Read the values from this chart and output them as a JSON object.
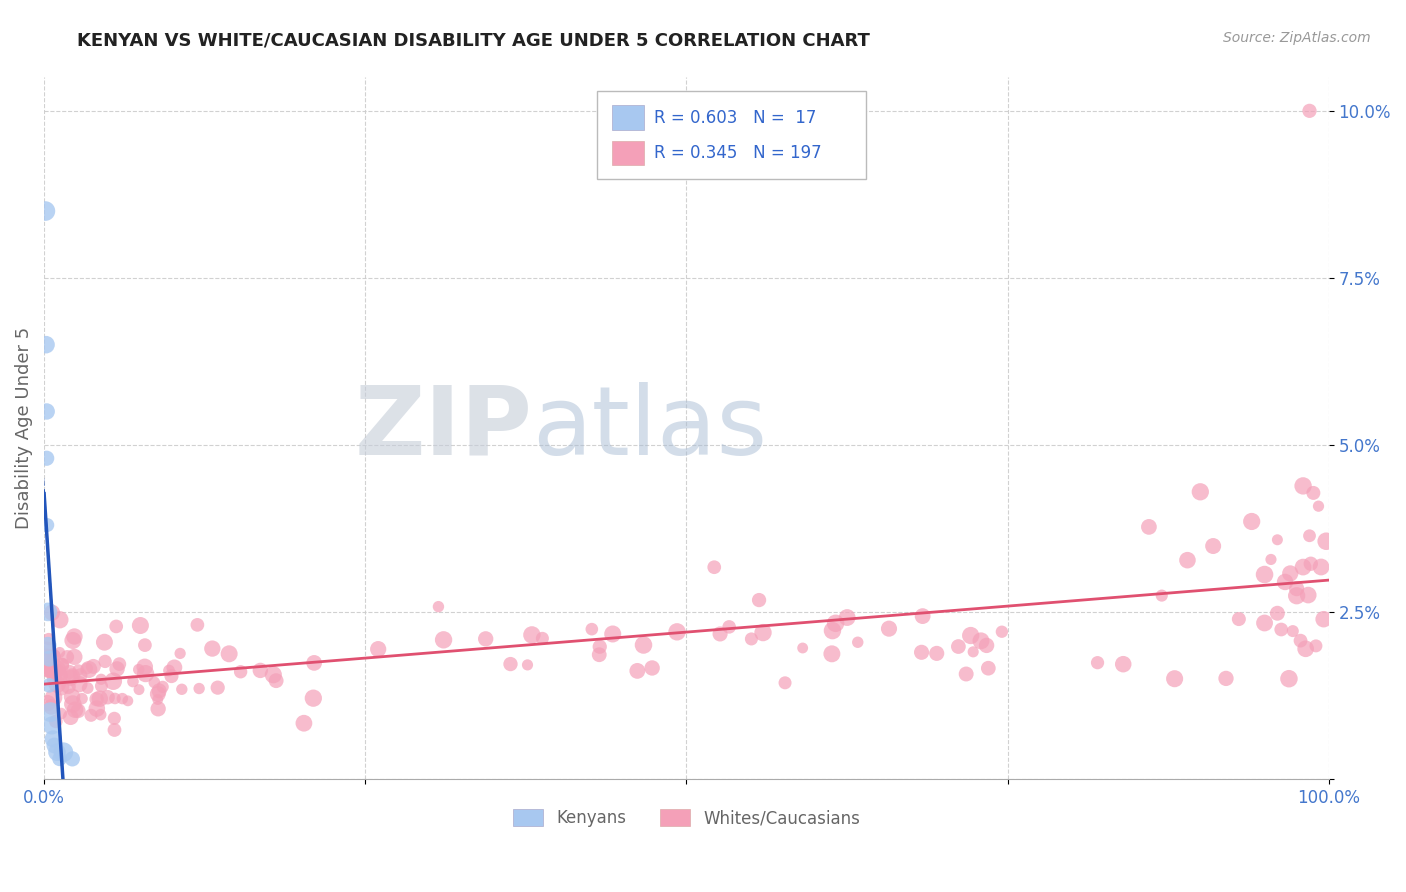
{
  "title": "KENYAN VS WHITE/CAUCASIAN DISABILITY AGE UNDER 5 CORRELATION CHART",
  "source": "Source: ZipAtlas.com",
  "ylabel": "Disability Age Under 5",
  "xlim": [
    0,
    1.0
  ],
  "ylim": [
    0,
    0.105
  ],
  "kenyan_R": 0.603,
  "kenyan_N": 17,
  "white_R": 0.345,
  "white_N": 197,
  "kenyan_color": "#a8c8f0",
  "white_color": "#f4a0b8",
  "kenyan_line_color": "#2255bb",
  "white_line_color": "#e05070",
  "legend_text_color": "#3366cc",
  "title_color": "#222222",
  "source_color": "#999999",
  "axis_label_color": "#666666",
  "tick_color": "#4477cc",
  "grid_color": "#cccccc",
  "background_color": "#ffffff",
  "watermark_zip": "ZIP",
  "watermark_atlas": "atlas",
  "watermark_zip_color": "#c0cce0",
  "watermark_atlas_color": "#b8cce0"
}
